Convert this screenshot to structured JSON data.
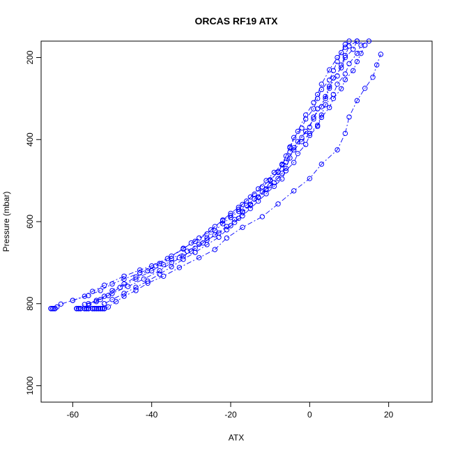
{
  "chart_data": {
    "type": "line",
    "title": "ORCAS RF19 ATX",
    "xlabel": "ATX",
    "ylabel": "Pressure (mbar)",
    "xlim": [
      -68,
      31
    ],
    "ylim": [
      1040,
      160
    ],
    "y_reversed": true,
    "x_ticks": [
      -60,
      -40,
      -20,
      0,
      20
    ],
    "y_ticks": [
      200,
      400,
      600,
      800,
      1000
    ],
    "grid": false,
    "line_style": "dashed with circle markers",
    "color": "#0000ff",
    "series": [
      {
        "points": [
          [
            -65,
            812
          ],
          [
            -64,
            808
          ],
          [
            -63,
            801
          ],
          [
            -60,
            792
          ],
          [
            -57,
            782
          ],
          [
            -55,
            770
          ],
          [
            -52,
            755
          ],
          [
            -47,
            733
          ],
          [
            -43,
            718
          ],
          [
            -40,
            708
          ],
          [
            -36,
            690
          ],
          [
            -32,
            667
          ],
          [
            -30,
            652
          ],
          [
            -28,
            640
          ],
          [
            -25,
            620
          ],
          [
            -22,
            598
          ],
          [
            -20,
            585
          ],
          [
            -18,
            570
          ],
          [
            -17,
            558
          ],
          [
            -15,
            540
          ],
          [
            -13,
            520
          ],
          [
            -11,
            500
          ],
          [
            -9,
            480
          ],
          [
            -7,
            460
          ],
          [
            -5,
            420
          ],
          [
            -3,
            380
          ],
          [
            -1,
            340
          ],
          [
            1,
            310
          ],
          [
            2,
            290
          ],
          [
            3,
            265
          ],
          [
            5,
            230
          ],
          [
            7,
            200
          ],
          [
            9,
            175
          ],
          [
            10,
            160
          ]
        ]
      },
      {
        "points": [
          [
            -59,
            812
          ],
          [
            -57,
            802
          ],
          [
            -54,
            792
          ],
          [
            -51,
            780
          ],
          [
            -48,
            760
          ],
          [
            -44,
            740
          ],
          [
            -40,
            720
          ],
          [
            -37,
            705
          ],
          [
            -33,
            688
          ],
          [
            -30,
            672
          ],
          [
            -27,
            652
          ],
          [
            -24,
            632
          ],
          [
            -21,
            612
          ],
          [
            -19,
            595
          ],
          [
            -17,
            578
          ],
          [
            -15,
            560
          ],
          [
            -13,
            541
          ],
          [
            -11,
            522
          ],
          [
            -9,
            505
          ],
          [
            -7,
            482
          ],
          [
            -6,
            455
          ],
          [
            -5,
            430
          ],
          [
            -3,
            405
          ],
          [
            -1,
            380
          ],
          [
            1,
            350
          ],
          [
            2,
            325
          ],
          [
            4,
            300
          ],
          [
            5,
            275
          ],
          [
            6,
            250
          ],
          [
            8,
            225
          ],
          [
            9,
            200
          ],
          [
            11,
            180
          ],
          [
            12,
            160
          ]
        ]
      },
      {
        "points": [
          [
            -52,
            812
          ],
          [
            -51,
            808
          ],
          [
            -49,
            795
          ],
          [
            -47,
            782
          ],
          [
            -44,
            768
          ],
          [
            -41,
            750
          ],
          [
            -37,
            733
          ],
          [
            -33,
            712
          ],
          [
            -28,
            688
          ],
          [
            -24,
            668
          ],
          [
            -21,
            640
          ],
          [
            -17,
            614
          ],
          [
            -12,
            588
          ],
          [
            -8,
            557
          ],
          [
            -4,
            525
          ],
          [
            0,
            495
          ],
          [
            3,
            460
          ],
          [
            7,
            425
          ],
          [
            9,
            385
          ],
          [
            10,
            345
          ],
          [
            12,
            305
          ],
          [
            14,
            275
          ],
          [
            16,
            248
          ],
          [
            17,
            218
          ],
          [
            18,
            192
          ]
        ]
      },
      {
        "points": [
          [
            -60,
            792
          ],
          [
            -56,
            780
          ],
          [
            -53,
            768
          ],
          [
            -50,
            752
          ],
          [
            -47,
            740
          ],
          [
            -43,
            725
          ],
          [
            -39,
            708
          ],
          [
            -35,
            690
          ],
          [
            -31,
            672
          ],
          [
            -28,
            655
          ],
          [
            -26,
            640
          ],
          [
            -24,
            622
          ],
          [
            -22,
            605
          ],
          [
            -20,
            590
          ],
          [
            -18,
            575
          ],
          [
            -16,
            560
          ],
          [
            -14,
            545
          ],
          [
            -12,
            528
          ],
          [
            -10,
            512
          ],
          [
            -8,
            495
          ],
          [
            -6,
            470
          ],
          [
            -5,
            445
          ],
          [
            -4,
            420
          ],
          [
            -2,
            395
          ],
          [
            0,
            370
          ],
          [
            1,
            345
          ],
          [
            3,
            320
          ],
          [
            4,
            295
          ],
          [
            5,
            270
          ],
          [
            7,
            245
          ],
          [
            8,
            218
          ],
          [
            9,
            195
          ],
          [
            10,
            172
          ],
          [
            12,
            160
          ]
        ]
      },
      {
        "points": [
          [
            -58,
            812
          ],
          [
            -56,
            800
          ],
          [
            -53,
            790
          ],
          [
            -50,
            775
          ],
          [
            -46,
            758
          ],
          [
            -42,
            740
          ],
          [
            -38,
            720
          ],
          [
            -35,
            700
          ],
          [
            -32,
            685
          ],
          [
            -29,
            665
          ],
          [
            -26,
            645
          ],
          [
            -23,
            628
          ],
          [
            -20,
            610
          ],
          [
            -18,
            592
          ],
          [
            -17,
            575
          ],
          [
            -15,
            558
          ],
          [
            -13,
            540
          ],
          [
            -11,
            520
          ],
          [
            -10,
            500
          ],
          [
            -8,
            478
          ],
          [
            -6,
            455
          ],
          [
            -4,
            425
          ],
          [
            -2,
            405
          ],
          [
            0,
            385
          ],
          [
            2,
            365
          ],
          [
            3,
            340
          ],
          [
            4,
            315
          ],
          [
            6,
            290
          ],
          [
            7,
            265
          ],
          [
            9,
            240
          ],
          [
            10,
            215
          ],
          [
            12,
            190
          ],
          [
            13,
            170
          ],
          [
            15,
            160
          ]
        ]
      },
      {
        "points": [
          [
            -57,
            812
          ],
          [
            -56,
            805
          ],
          [
            -54,
            795
          ],
          [
            -52,
            782
          ],
          [
            -50,
            768
          ],
          [
            -47,
            752
          ],
          [
            -44,
            735
          ],
          [
            -41,
            720
          ],
          [
            -38,
            702
          ],
          [
            -35,
            684
          ],
          [
            -32,
            665
          ],
          [
            -29,
            648
          ],
          [
            -26,
            630
          ],
          [
            -24,
            612
          ],
          [
            -22,
            596
          ],
          [
            -20,
            580
          ],
          [
            -18,
            565
          ],
          [
            -16,
            550
          ],
          [
            -14,
            533
          ],
          [
            -12,
            515
          ],
          [
            -10,
            498
          ],
          [
            -8,
            480
          ],
          [
            -7,
            462
          ],
          [
            -6,
            440
          ],
          [
            -5,
            418
          ],
          [
            -4,
            395
          ],
          [
            -2,
            372
          ],
          [
            -1,
            350
          ],
          [
            1,
            325
          ],
          [
            2,
            300
          ],
          [
            3,
            278
          ],
          [
            5,
            255
          ],
          [
            6,
            232
          ],
          [
            7,
            210
          ],
          [
            8,
            188
          ],
          [
            9,
            168
          ]
        ]
      },
      {
        "points": [
          [
            -54,
            812
          ],
          [
            -52,
            800
          ],
          [
            -50,
            790
          ],
          [
            -47,
            775
          ],
          [
            -44,
            760
          ],
          [
            -41,
            745
          ],
          [
            -38,
            728
          ],
          [
            -35,
            710
          ],
          [
            -32,
            692
          ],
          [
            -29,
            675
          ],
          [
            -26,
            656
          ],
          [
            -23,
            638
          ],
          [
            -21,
            620
          ],
          [
            -19,
            602
          ],
          [
            -17,
            586
          ],
          [
            -15,
            568
          ],
          [
            -13,
            550
          ],
          [
            -11,
            532
          ],
          [
            -9,
            514
          ],
          [
            -7,
            496
          ],
          [
            -6,
            476
          ],
          [
            -4,
            456
          ],
          [
            -3,
            434
          ],
          [
            -1,
            412
          ],
          [
            0,
            390
          ],
          [
            2,
            368
          ],
          [
            3,
            346
          ],
          [
            5,
            322
          ],
          [
            6,
            300
          ],
          [
            8,
            276
          ],
          [
            9,
            254
          ],
          [
            11,
            232
          ],
          [
            12,
            210
          ],
          [
            13,
            190
          ],
          [
            14,
            170
          ]
        ]
      }
    ],
    "floor_points": {
      "pressure": 812,
      "x": [
        -65.5,
        -65,
        -64.5,
        -59,
        -58.5,
        -58,
        -57,
        -56.5,
        -56,
        -55,
        -54.5,
        -54,
        -53.5,
        -53,
        -52.5,
        -52
      ]
    }
  }
}
